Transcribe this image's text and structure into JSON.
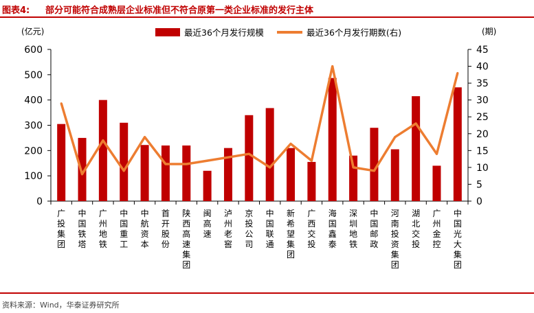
{
  "header": {
    "figure_label": "图表4:",
    "figure_title": "部分可能符合成熟层企业标准但不符合原第一类企业标准的发行主体"
  },
  "footer": {
    "source": "资料来源：Wind，华泰证券研究所"
  },
  "colors": {
    "bar": "#c00000",
    "line": "#ed7d31",
    "rule": "#c00000"
  },
  "chart_data": {
    "type": "bar",
    "categories": [
      "广投集团",
      "中国铁塔",
      "广州地铁",
      "中国重工",
      "中航资本",
      "首开股份",
      "陕西高速集团",
      "闽高速",
      "泸州老窖",
      "京投公司",
      "中国联通",
      "新希望集团",
      "广西交投",
      "海国鑫泰",
      "深圳地铁",
      "中国邮政",
      "河南投资集团",
      "湖北交投",
      "广州金控",
      "中国光大集团"
    ],
    "series": [
      {
        "name": "最近36个月发行规模",
        "type": "bar",
        "axis": "left",
        "values": [
          305,
          250,
          400,
          310,
          222,
          220,
          220,
          120,
          210,
          340,
          368,
          210,
          155,
          487,
          180,
          290,
          205,
          415,
          140,
          450
        ]
      },
      {
        "name": "最近36个月发行期数(右)",
        "type": "line",
        "axis": "right",
        "values": [
          29,
          8,
          18,
          9,
          19,
          11,
          11,
          12,
          13,
          14,
          10,
          17,
          12,
          40,
          10,
          9,
          19,
          23,
          14,
          38
        ]
      }
    ],
    "y_left": {
      "unit": "(亿元)",
      "ylim": [
        0,
        600
      ],
      "ticks": [
        0,
        100,
        200,
        300,
        400,
        500,
        600
      ]
    },
    "y_right": {
      "unit": "(期)",
      "ylim": [
        0,
        45
      ],
      "ticks": [
        0,
        5,
        10,
        15,
        20,
        25,
        30,
        35,
        40,
        45
      ]
    },
    "legend_position": "top"
  }
}
